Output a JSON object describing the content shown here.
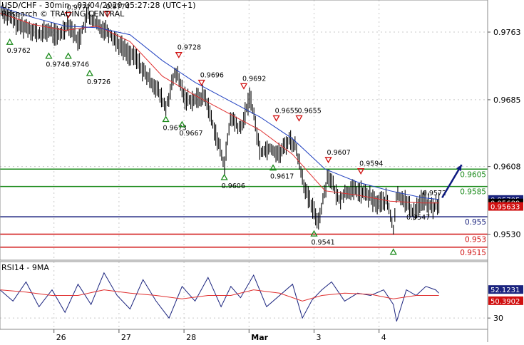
{
  "header": {
    "title_line1": "USD/CHF - 30min - 03/04/2020 05:27:28 (UTC+1)",
    "title_line2": "Research © TRADING CENTRAL"
  },
  "rsi_panel": {
    "title": "RSI14 - 9MA"
  },
  "colors": {
    "background": "#ffffff",
    "grid": "#c8c8c8",
    "price": "#000000",
    "ma_fast": "#e03030",
    "ma_slow": "#2040c0",
    "support_green": "#1a8a1a",
    "pivot_navy": "#1a237e",
    "resistance_red": "#d01010",
    "rsi": "#1a237e",
    "rsi_ma": "#e03030",
    "arrow": "#0d1a80",
    "up_marker": "#1a8a1a",
    "down_marker": "#d01010"
  },
  "chart_data": [
    {
      "type": "line",
      "panel": "price",
      "ylim": [
        0.95,
        0.98
      ],
      "yticks": [
        0.9763,
        0.9685,
        0.9608,
        0.953
      ],
      "ytick_labels": [
        "0.9763",
        "0.9685",
        "0.9608",
        "0.9530"
      ],
      "x_ticks": [
        {
          "label": "26",
          "x": 0.33
        },
        {
          "label": "27",
          "x": 1.33
        },
        {
          "label": "28",
          "x": 2.33
        },
        {
          "label": "Mar",
          "x": 3.33
        },
        {
          "label": "3",
          "x": 4.33
        },
        {
          "label": "4",
          "x": 5.33
        }
      ],
      "xlim": [
        -0.5,
        7.0
      ],
      "grid": true,
      "series": [
        {
          "role": "price",
          "x": [
            -0.5,
            -0.35,
            -0.2,
            -0.05,
            0.1,
            0.25,
            0.4,
            0.55,
            0.7,
            0.85,
            1.0,
            1.15,
            1.3,
            1.45,
            1.6,
            1.75,
            1.9,
            2.05,
            2.2,
            2.35,
            2.5,
            2.65,
            2.8,
            2.95,
            3.05,
            3.2,
            3.35,
            3.5,
            3.65,
            3.8,
            3.95,
            4.05,
            4.2,
            4.3,
            4.4,
            4.55,
            4.7,
            4.85,
            5.0,
            5.15,
            5.3,
            5.45,
            5.55,
            5.6,
            5.7,
            5.85,
            6.0,
            6.15,
            6.25
          ],
          "values": [
            0.979,
            0.978,
            0.977,
            0.9768,
            0.976,
            0.9765,
            0.9758,
            0.9774,
            0.9752,
            0.9783,
            0.977,
            0.9765,
            0.9752,
            0.974,
            0.9732,
            0.9712,
            0.97,
            0.9675,
            0.9718,
            0.9686,
            0.9685,
            0.969,
            0.965,
            0.961,
            0.9665,
            0.965,
            0.969,
            0.9625,
            0.963,
            0.9622,
            0.964,
            0.963,
            0.958,
            0.956,
            0.9545,
            0.96,
            0.957,
            0.958,
            0.958,
            0.9575,
            0.9565,
            0.957,
            0.9535,
            0.9575,
            0.9572,
            0.9555,
            0.957,
            0.956,
            0.9566
          ]
        },
        {
          "role": "ma_fast",
          "x": [
            -0.5,
            0.0,
            0.5,
            1.0,
            1.5,
            2.0,
            2.5,
            3.0,
            3.5,
            4.0,
            4.5,
            5.0,
            5.5,
            6.0,
            6.25
          ],
          "values": [
            0.9785,
            0.9772,
            0.9765,
            0.977,
            0.9752,
            0.9712,
            0.969,
            0.967,
            0.965,
            0.9622,
            0.958,
            0.9575,
            0.9568,
            0.9566,
            0.9566
          ]
        },
        {
          "role": "ma_slow",
          "x": [
            -0.5,
            0.0,
            0.5,
            1.0,
            1.5,
            2.0,
            2.5,
            3.0,
            3.5,
            4.0,
            4.5,
            5.0,
            5.5,
            6.0,
            6.25
          ],
          "values": [
            0.9792,
            0.978,
            0.977,
            0.9768,
            0.976,
            0.973,
            0.9705,
            0.9685,
            0.9665,
            0.964,
            0.9605,
            0.959,
            0.958,
            0.9572,
            0.957
          ]
        }
      ],
      "levels": [
        {
          "value": 0.9605,
          "label": "0.9605",
          "role": "support_green"
        },
        {
          "value": 0.9585,
          "label": "0.9585",
          "role": "support_green"
        },
        {
          "value": 0.955,
          "label": "0.955",
          "role": "pivot_navy"
        },
        {
          "value": 0.953,
          "label": "0.953",
          "role": "resistance_red"
        },
        {
          "value": 0.9515,
          "label": "0.9515",
          "role": "resistance_red"
        }
      ],
      "price_tags": [
        {
          "value": 0.957,
          "label": "0.95705",
          "fill": "#1a237e",
          "text": "#ffffff"
        },
        {
          "value": 0.9566,
          "label": "0.95689",
          "fill": "#000000",
          "text": "#ffffff"
        },
        {
          "value": 0.9562,
          "label": "0.95633",
          "fill": "#d01010",
          "text": "#ffffff"
        }
      ],
      "annotations": [
        {
          "kind": "down",
          "x": 0.55,
          "y": 0.9774,
          "label": "0.9777"
        },
        {
          "kind": "down",
          "x": 1.15,
          "y": 0.9775,
          "label": "0.9774"
        },
        {
          "kind": "down",
          "x": 2.25,
          "y": 0.9728,
          "label": "0.9728"
        },
        {
          "kind": "down",
          "x": 2.6,
          "y": 0.9696,
          "label": "0.9696"
        },
        {
          "kind": "down",
          "x": 3.25,
          "y": 0.9692,
          "label": "0.9692"
        },
        {
          "kind": "down",
          "x": 3.75,
          "y": 0.9655,
          "label": "0.9655"
        },
        {
          "kind": "down",
          "x": 4.1,
          "y": 0.9655,
          "label": "0.9655"
        },
        {
          "kind": "down",
          "x": 4.55,
          "y": 0.9607,
          "label": "0.9607"
        },
        {
          "kind": "down",
          "x": 5.05,
          "y": 0.9594,
          "label": "0.9594"
        },
        {
          "kind": "up",
          "x": -0.35,
          "y": 0.9762,
          "label": "0.9762"
        },
        {
          "kind": "up",
          "x": 0.25,
          "y": 0.9746,
          "label": "0.9746"
        },
        {
          "kind": "up",
          "x": 0.55,
          "y": 0.9746,
          "label": "0.9746"
        },
        {
          "kind": "up",
          "x": 0.88,
          "y": 0.9726,
          "label": "0.9726"
        },
        {
          "kind": "up",
          "x": 2.05,
          "y": 0.9673,
          "label": "0.9673"
        },
        {
          "kind": "up",
          "x": 2.3,
          "y": 0.9667,
          "label": "0.9667"
        },
        {
          "kind": "up",
          "x": 2.95,
          "y": 0.9606,
          "label": "0.9606"
        },
        {
          "kind": "up",
          "x": 3.7,
          "y": 0.9617,
          "label": "0.9617"
        },
        {
          "kind": "up",
          "x": 4.33,
          "y": 0.9541,
          "label": "0.9541"
        },
        {
          "kind": "up",
          "x": 5.55,
          "y": 0.952,
          "label": ""
        },
        {
          "kind": "text",
          "x": 5.75,
          "y": 0.9547,
          "label": "0.9547"
        },
        {
          "kind": "text",
          "x": 6.0,
          "y": 0.9575,
          "label": "0.9572"
        }
      ],
      "forecast_arrow": {
        "from": [
          6.3,
          0.9572
        ],
        "to": [
          6.6,
          0.961
        ]
      }
    },
    {
      "type": "line",
      "panel": "rsi",
      "ylim": [
        20,
        80
      ],
      "yticks": [
        30
      ],
      "ytick_labels": [
        "30"
      ],
      "xlim": [
        -0.5,
        7.0
      ],
      "grid": true,
      "series": [
        {
          "role": "rsi",
          "x": [
            -0.5,
            -0.3,
            -0.1,
            0.1,
            0.3,
            0.5,
            0.7,
            0.9,
            1.1,
            1.3,
            1.5,
            1.7,
            1.9,
            2.1,
            2.3,
            2.5,
            2.7,
            2.9,
            3.05,
            3.2,
            3.4,
            3.6,
            3.8,
            4.0,
            4.15,
            4.3,
            4.45,
            4.6,
            4.8,
            5.0,
            5.2,
            5.4,
            5.55,
            5.6,
            5.75,
            5.9,
            6.05,
            6.2,
            6.25
          ],
          "values": [
            55,
            45,
            62,
            40,
            55,
            35,
            60,
            42,
            70,
            50,
            38,
            64,
            45,
            30,
            58,
            45,
            66,
            40,
            58,
            48,
            68,
            40,
            50,
            60,
            30,
            46,
            55,
            62,
            45,
            52,
            50,
            55,
            42,
            27,
            55,
            50,
            58,
            55,
            52
          ]
        },
        {
          "role": "rsi_ma",
          "x": [
            -0.5,
            -0.1,
            0.3,
            0.7,
            1.1,
            1.5,
            1.9,
            2.3,
            2.7,
            3.05,
            3.4,
            3.8,
            4.15,
            4.45,
            4.8,
            5.2,
            5.55,
            5.9,
            6.25
          ],
          "values": [
            55,
            53,
            50,
            50,
            55,
            52,
            50,
            47,
            50,
            50,
            55,
            52,
            45,
            50,
            52,
            51,
            47,
            50,
            50
          ]
        }
      ],
      "value_tags": [
        {
          "value": 52.1,
          "label": "52.1231",
          "fill": "#1a237e",
          "text": "#ffffff"
        },
        {
          "value": 50.4,
          "label": "50.3902",
          "fill": "#d01010",
          "text": "#ffffff"
        }
      ]
    }
  ]
}
